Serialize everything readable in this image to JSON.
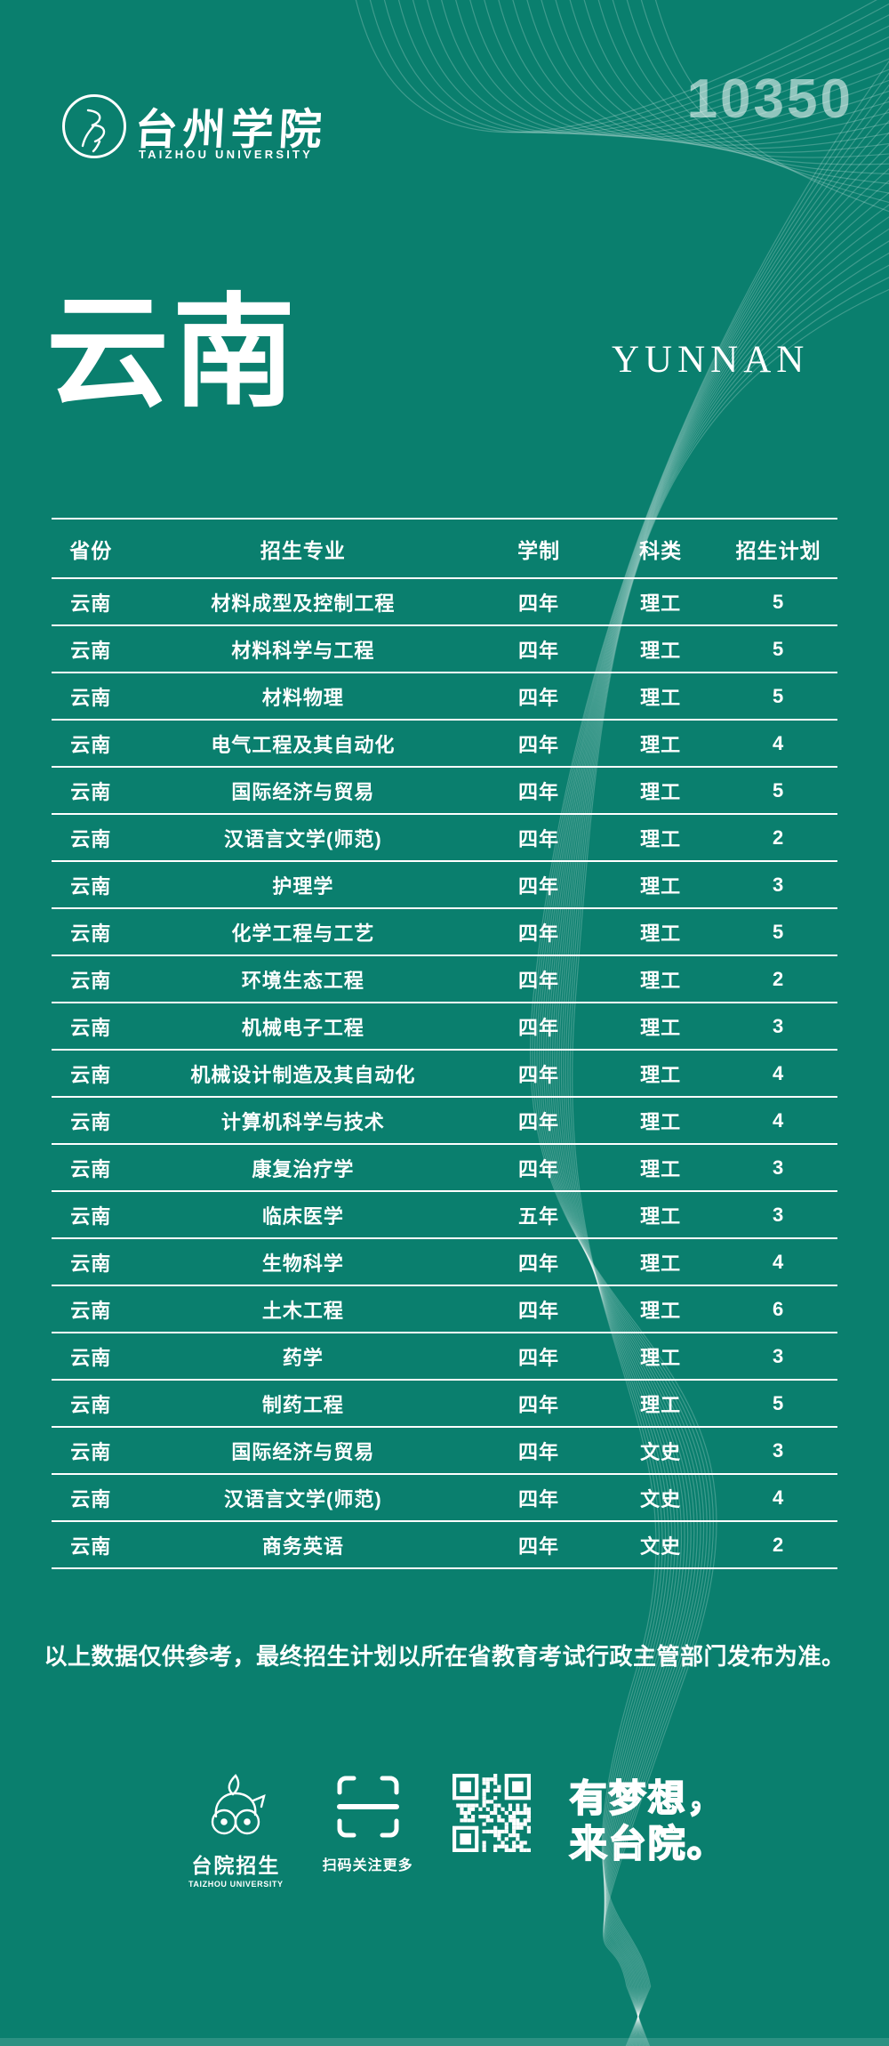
{
  "header": {
    "school_name": "台州学院",
    "school_name_en": "TAIZHOU UNIVERSITY",
    "school_code": "10350"
  },
  "title": {
    "province_cn": "云南",
    "province_en": "YUNNAN"
  },
  "table": {
    "columns": [
      "省份",
      "招生专业",
      "学制",
      "科类",
      "招生计划"
    ],
    "rows": [
      [
        "云南",
        "材料成型及控制工程",
        "四年",
        "理工",
        "5"
      ],
      [
        "云南",
        "材料科学与工程",
        "四年",
        "理工",
        "5"
      ],
      [
        "云南",
        "材料物理",
        "四年",
        "理工",
        "5"
      ],
      [
        "云南",
        "电气工程及其自动化",
        "四年",
        "理工",
        "4"
      ],
      [
        "云南",
        "国际经济与贸易",
        "四年",
        "理工",
        "5"
      ],
      [
        "云南",
        "汉语言文学(师范)",
        "四年",
        "理工",
        "2"
      ],
      [
        "云南",
        "护理学",
        "四年",
        "理工",
        "3"
      ],
      [
        "云南",
        "化学工程与工艺",
        "四年",
        "理工",
        "5"
      ],
      [
        "云南",
        "环境生态工程",
        "四年",
        "理工",
        "2"
      ],
      [
        "云南",
        "机械电子工程",
        "四年",
        "理工",
        "3"
      ],
      [
        "云南",
        "机械设计制造及其自动化",
        "四年",
        "理工",
        "4"
      ],
      [
        "云南",
        "计算机科学与技术",
        "四年",
        "理工",
        "4"
      ],
      [
        "云南",
        "康复治疗学",
        "四年",
        "理工",
        "3"
      ],
      [
        "云南",
        "临床医学",
        "五年",
        "理工",
        "3"
      ],
      [
        "云南",
        "生物科学",
        "四年",
        "理工",
        "4"
      ],
      [
        "云南",
        "土木工程",
        "四年",
        "理工",
        "6"
      ],
      [
        "云南",
        "药学",
        "四年",
        "理工",
        "3"
      ],
      [
        "云南",
        "制药工程",
        "四年",
        "理工",
        "5"
      ],
      [
        "云南",
        "国际经济与贸易",
        "四年",
        "文史",
        "3"
      ],
      [
        "云南",
        "汉语言文学(师范)",
        "四年",
        "文史",
        "4"
      ],
      [
        "云南",
        "商务英语",
        "四年",
        "文史",
        "2"
      ]
    ]
  },
  "disclaimer": "以上数据仅供参考，最终招生计划以所在省教育考试行政主管部门发布为准。",
  "footer": {
    "mascot_label": "台院招生",
    "mascot_label_en": "TAIZHOU UNIVERSITY",
    "scan_hint": "扫码关注更多",
    "slogan_line1": "有梦想，",
    "slogan_line2": "来台院。"
  },
  "colors": {
    "background": "#0a7f6e",
    "text": "#ffffff",
    "school_code_text": "#9fc8bf"
  }
}
